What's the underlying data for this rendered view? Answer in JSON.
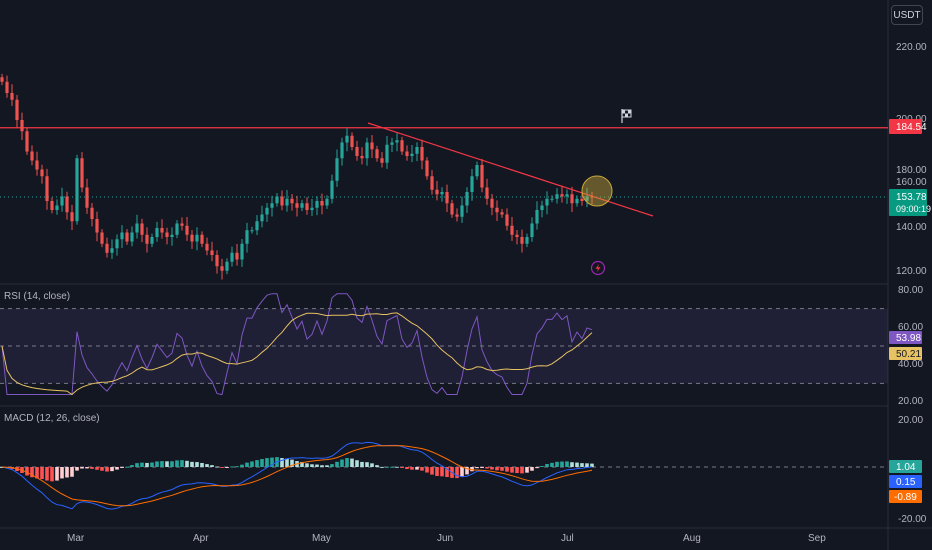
{
  "currency": "USDT",
  "colors": {
    "background": "#131722",
    "up": "#26a69a",
    "down": "#ef5350",
    "grid": "#1e222d",
    "text": "#b2b5be",
    "resistance": "#f23645",
    "trendline": "#f23645",
    "rsi": "#7e57c2",
    "rsi_ma": "#e6c262",
    "macd": "#2962ff",
    "signal": "#ff6d00",
    "highlight": "#c9a83a"
  },
  "price_axis": {
    "ticks": [
      "220.00",
      "200.00",
      "180.00",
      "160.00",
      "140.00",
      "120.00"
    ],
    "resistance_label": "184.54",
    "last_price": "153.78",
    "countdown": "09:00:19"
  },
  "rsi_panel": {
    "title": "RSI (14, close)",
    "ticks": [
      "80.00",
      "60.00",
      "40.00",
      "20.00"
    ],
    "value": "53.98",
    "ma_value": "50.21"
  },
  "macd_panel": {
    "title": "MACD (12, 26, close)",
    "ticks": [
      "20.00",
      "-20.00"
    ],
    "hist_value": "1.04",
    "macd_value": "0.15",
    "signal_value": "-0.89"
  },
  "time_axis": [
    "Mar",
    "Apr",
    "May",
    "Jun",
    "Jul",
    "Aug",
    "Sep"
  ],
  "chart_data": {
    "type": "candlestick",
    "series_start": "2024-02-10",
    "resistance": 184.54,
    "last_price": 153.78,
    "price_range": [
      117,
      228
    ],
    "closes": [
      205,
      200,
      197,
      188,
      183,
      174,
      170,
      166,
      163,
      152,
      148,
      150,
      154,
      147,
      143,
      171,
      158,
      149,
      144,
      138,
      133,
      129,
      131,
      135,
      138,
      134,
      138,
      142,
      137,
      133,
      136,
      140,
      138,
      136,
      137,
      142,
      141,
      137,
      134,
      137,
      133,
      130,
      128,
      123,
      121,
      125,
      129,
      126,
      133,
      139,
      139,
      143,
      146,
      149,
      151,
      154,
      150,
      153,
      151,
      149,
      151,
      148,
      149,
      152,
      150,
      153,
      161,
      171,
      178,
      181,
      176,
      172,
      171,
      178,
      175,
      171,
      169,
      177,
      178,
      179,
      174,
      172,
      173,
      176,
      170,
      163,
      157,
      155,
      156,
      151,
      146,
      145,
      150,
      156,
      163,
      168,
      158,
      153,
      149,
      147,
      146,
      141,
      137,
      136,
      133,
      136,
      142,
      148,
      150,
      153,
      153,
      155,
      154,
      155,
      151,
      153,
      152,
      154,
      153.78
    ],
    "rsi": {
      "range": [
        20,
        80
      ],
      "levels": [
        70,
        50,
        30
      ],
      "value": 53.98,
      "ma_value": 50.21
    },
    "macd": {
      "range": [
        -20,
        20
      ],
      "hist": 1.04,
      "macd": 0.15,
      "signal": -0.89
    }
  }
}
